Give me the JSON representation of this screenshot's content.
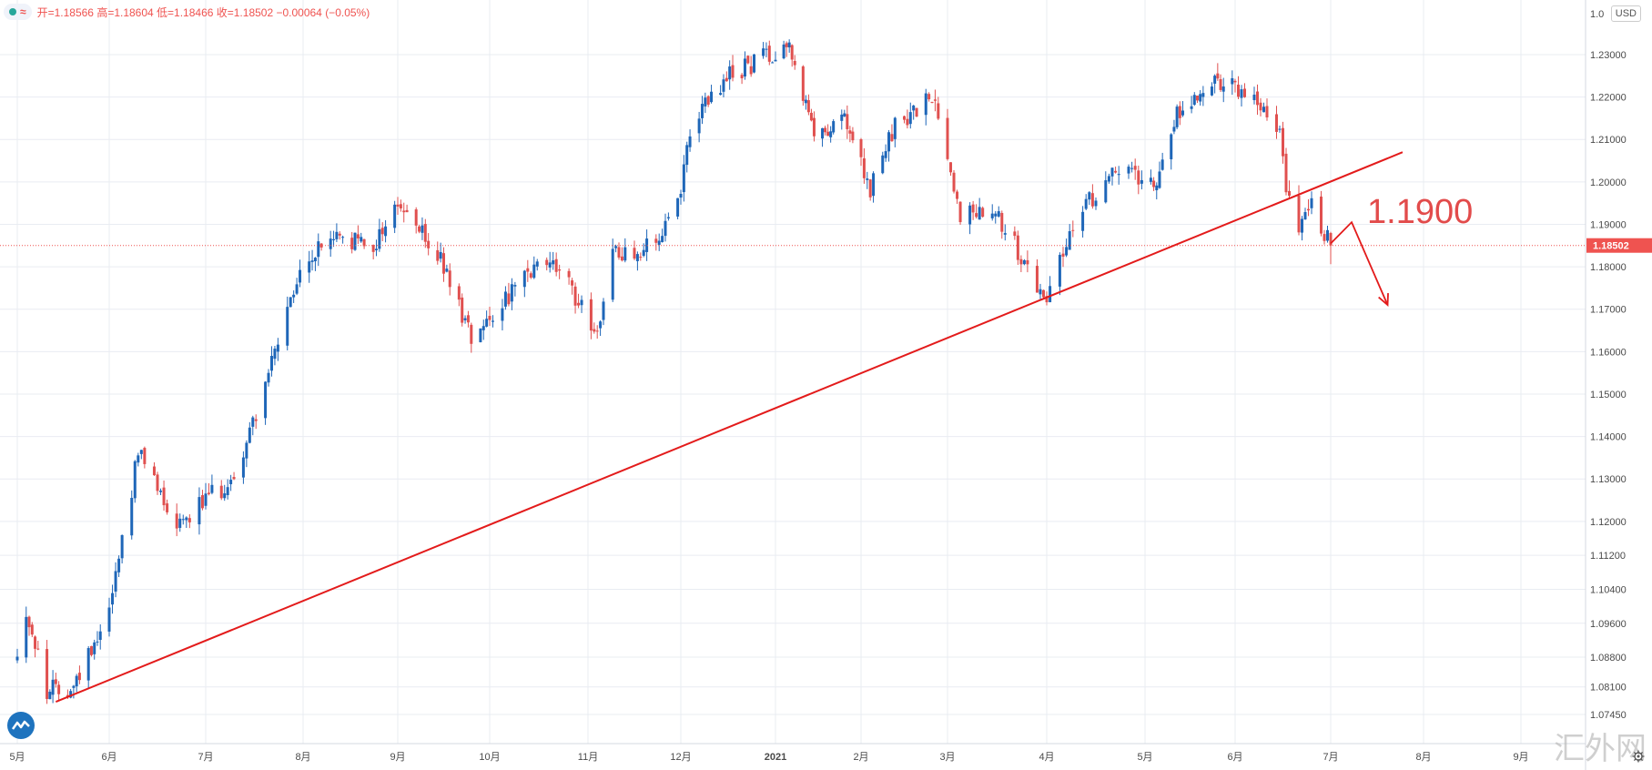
{
  "header": {
    "ohlc_text": "开=1.18566 高=1.18604 低=1.18466 收=1.18502 −0.00064 (−0.05%)",
    "approx_symbol": "≈",
    "currency": "USD"
  },
  "annotation": {
    "label": "1.1900"
  },
  "watermark": "汇外网",
  "colors": {
    "up": "#1e66b8",
    "down": "#e0504f",
    "trendline": "#e31b1b",
    "grid": "#e9ecf2",
    "price_tag": "#ef5350"
  },
  "chart_data": {
    "type": "candlestick",
    "y_axis_ticks": [
      "1.07450",
      "1.08100",
      "1.08800",
      "1.09600",
      "1.10400",
      "1.11200",
      "1.12000",
      "1.13000",
      "1.14000",
      "1.15000",
      "1.16000",
      "1.17000",
      "1.18000",
      "1.19000",
      "1.20000",
      "1.21000",
      "1.22000",
      "1.23000"
    ],
    "y_axis_top_label": "1.0",
    "x_axis_labels": [
      "5月",
      "6月",
      "7月",
      "8月",
      "9月",
      "10月",
      "11月",
      "12月",
      "2021",
      "2月",
      "3月",
      "4月",
      "5月",
      "6月",
      "7月",
      "8月",
      "9月"
    ],
    "x_axis_months": [
      "2020-05",
      "2020-06",
      "2020-07",
      "2020-08",
      "2020-09",
      "2020-10",
      "2020-11",
      "2020-12",
      "2021-01",
      "2021-02",
      "2021-03",
      "2021-04",
      "2021-05",
      "2021-06",
      "2021-07",
      "2021-08",
      "2021-09"
    ],
    "last_price": "1.18502",
    "last_price_value": 1.18502,
    "trendline": {
      "start": {
        "date": "2020-05-14",
        "price": 1.0775
      },
      "end": {
        "date": "2021-07-25",
        "price": 1.207
      }
    },
    "forecast_arrow": {
      "points": [
        {
          "date": "2021-07-01",
          "price": 1.1855
        },
        {
          "date": "2021-07-08",
          "price": 1.1905
        },
        {
          "date": "2021-07-20",
          "price": 1.171
        }
      ]
    },
    "monthly_closes": [
      {
        "month": "2020-05",
        "close": 1.08
      },
      {
        "month": "2020-05-end",
        "close": 1.11
      },
      {
        "month": "2020-06",
        "close": 1.124
      },
      {
        "month": "2020-07",
        "close": 1.178
      },
      {
        "month": "2020-08",
        "close": 1.193
      },
      {
        "month": "2020-09",
        "close": 1.172
      },
      {
        "month": "2020-10",
        "close": 1.165
      },
      {
        "month": "2020-11",
        "close": 1.193
      },
      {
        "month": "2020-12",
        "close": 1.222
      },
      {
        "month": "2021-01",
        "close": 1.214
      },
      {
        "month": "2021-02",
        "close": 1.208
      },
      {
        "month": "2021-03",
        "close": 1.173
      },
      {
        "month": "2021-04",
        "close": 1.202
      },
      {
        "month": "2021-05",
        "close": 1.222
      },
      {
        "month": "2021-06",
        "close": 1.186
      }
    ]
  }
}
